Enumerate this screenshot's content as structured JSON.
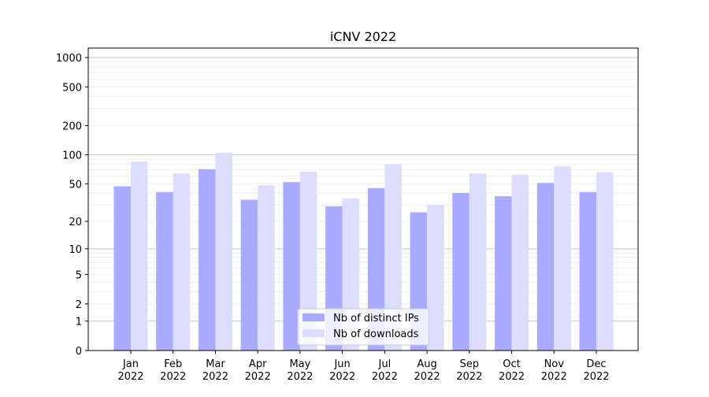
{
  "chart_data": {
    "type": "bar",
    "title": "iCNV 2022",
    "xlabel": "",
    "ylabel": "",
    "yscale": "log(1+y) (symmetric log)",
    "ylim": [
      0,
      1250
    ],
    "yticks": [
      0,
      1,
      2,
      5,
      10,
      20,
      50,
      100,
      200,
      500,
      1000
    ],
    "grid": true,
    "legend": "bottom-center",
    "categories": [
      "Jan\n2022",
      "Feb\n2022",
      "Mar\n2022",
      "Apr\n2022",
      "May\n2022",
      "Jun\n2022",
      "Jul\n2022",
      "Aug\n2022",
      "Sep\n2022",
      "Oct\n2022",
      "Nov\n2022",
      "Dec\n2022"
    ],
    "series": [
      {
        "name": "Nb of distinct IPs",
        "color": "#aaaaff",
        "values": [
          47,
          41,
          71,
          34,
          52,
          29,
          45,
          25,
          40,
          37,
          51,
          41
        ]
      },
      {
        "name": "Nb of downloads",
        "color": "#ddddff",
        "values": [
          85,
          64,
          105,
          48,
          67,
          35,
          80,
          30,
          64,
          62,
          76,
          66
        ]
      }
    ]
  }
}
